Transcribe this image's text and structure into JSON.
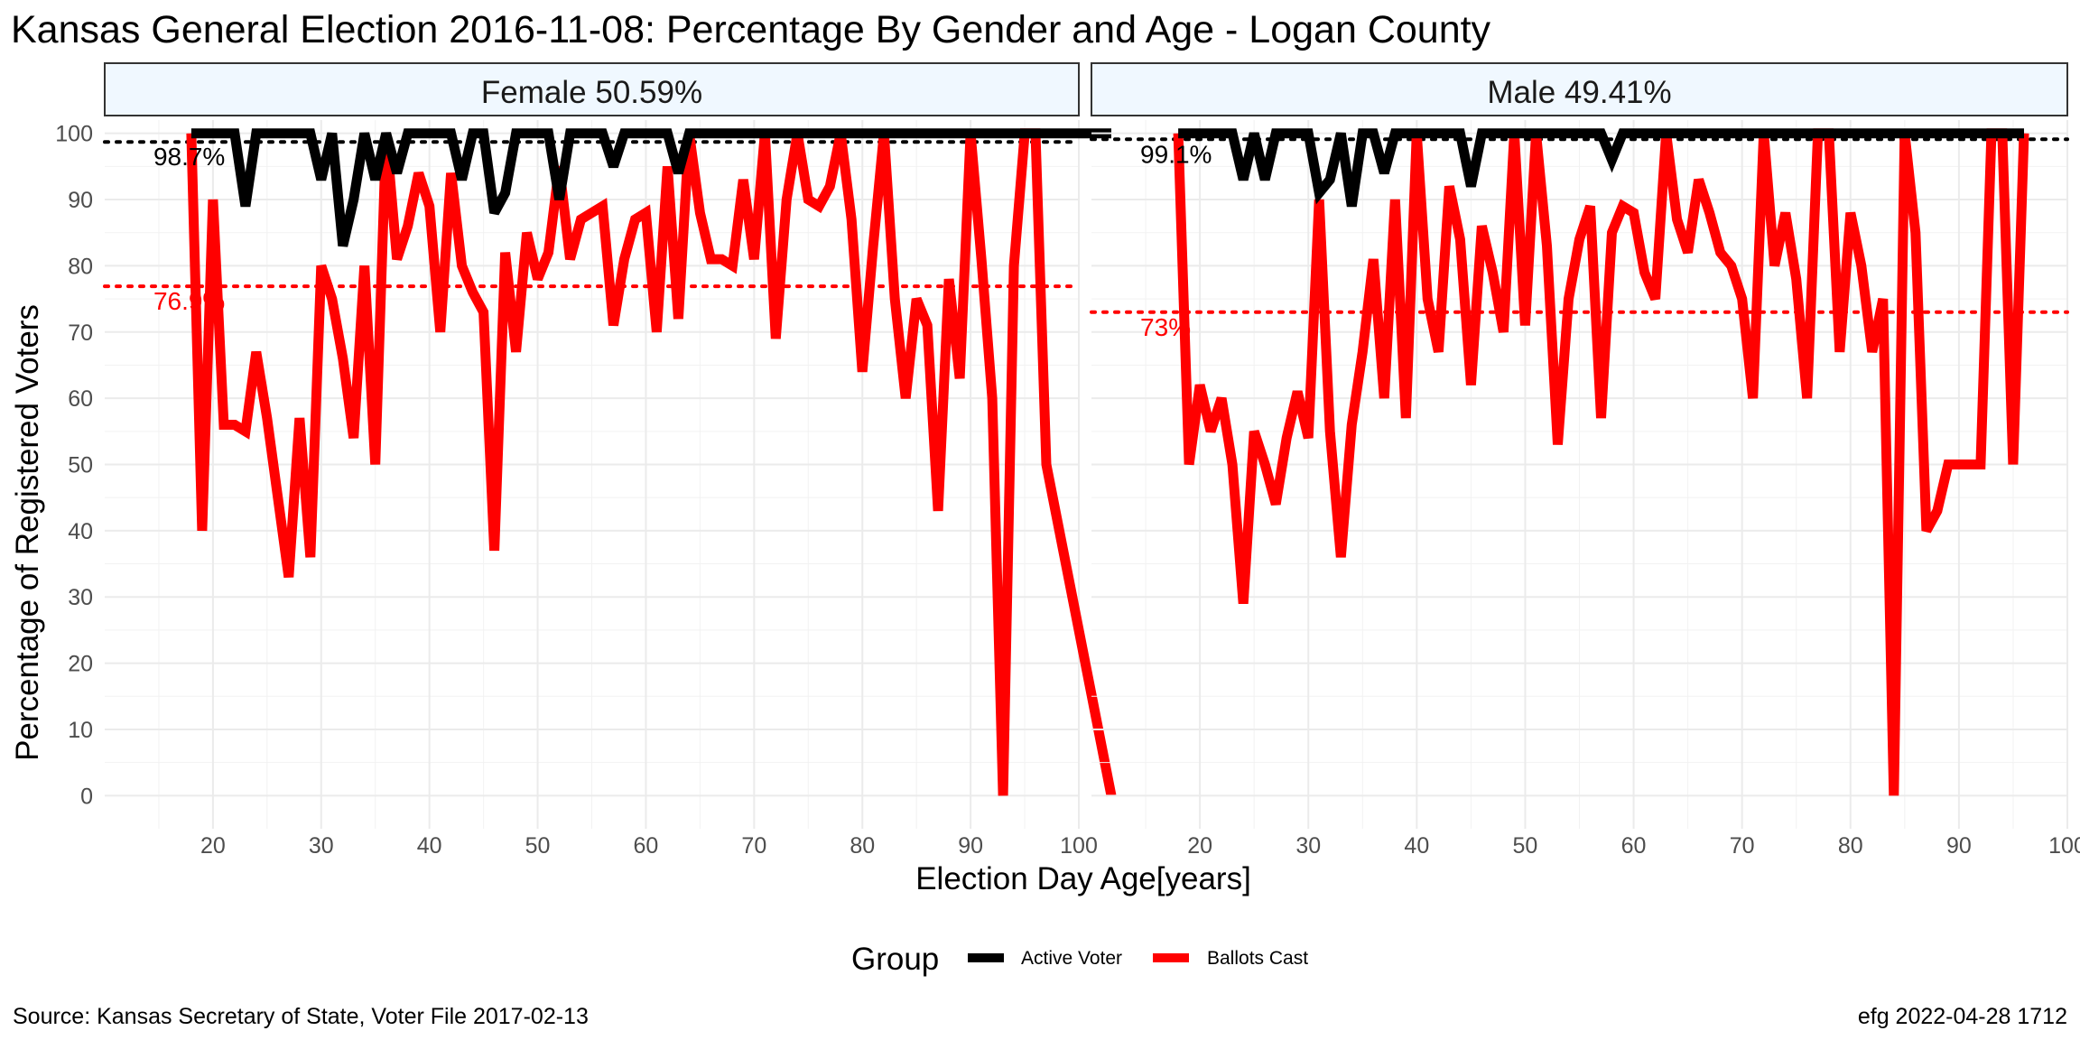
{
  "title": "Kansas General Election 2016-11-08:  Percentage By Gender and Age - Logan County",
  "caption_left": "Source:  Kansas Secretary of State, Voter File  2017-02-13",
  "caption_right": "efg 2022-04-28 1712",
  "chart_data": {
    "type": "line",
    "xlabel": "Election Day Age[years]",
    "ylabel": "Percentage of Registered Voters",
    "xlim": [
      10,
      100
    ],
    "ylim": [
      -5,
      102
    ],
    "x_ticks": [
      20,
      30,
      40,
      50,
      60,
      70,
      80,
      90,
      100
    ],
    "y_ticks": [
      0,
      10,
      20,
      30,
      40,
      50,
      60,
      70,
      80,
      90,
      100
    ],
    "grid": true,
    "legend": {
      "title": "Group",
      "placement": "bottom",
      "entries": [
        {
          "label": "Active Voter",
          "color": "#000000"
        },
        {
          "label": "Ballots Cast",
          "color": "#ff0000"
        }
      ]
    },
    "panels": [
      {
        "strip": "Female 50.59%",
        "series": [
          {
            "name": "Active Voter",
            "color": "#000000",
            "mean": 98.7,
            "mean_label": "98.7%",
            "x": [
              18,
              19,
              20,
              21,
              22,
              23,
              24,
              25,
              26,
              27,
              28,
              29,
              30,
              31,
              32,
              33,
              34,
              35,
              36,
              37,
              38,
              39,
              40,
              41,
              42,
              43,
              44,
              45,
              46,
              47,
              48,
              49,
              50,
              51,
              52,
              53,
              54,
              55,
              56,
              57,
              58,
              59,
              60,
              61,
              62,
              63,
              64,
              65,
              66,
              67,
              68,
              69,
              70,
              71,
              72,
              73,
              74,
              75,
              76,
              77,
              78,
              79,
              80,
              81,
              82,
              83,
              84,
              85,
              86,
              87,
              88,
              89,
              90,
              91,
              92,
              93,
              94,
              95,
              96,
              97,
              98,
              99,
              100,
              101,
              102,
              103
            ],
            "y": [
              100,
              100,
              100,
              100,
              100,
              89,
              100,
              100,
              100,
              100,
              100,
              100,
              93,
              100,
              83,
              90,
              100,
              93,
              100,
              94,
              100,
              100,
              100,
              100,
              100,
              93,
              100,
              100,
              88,
              91,
              100,
              100,
              100,
              100,
              90,
              100,
              100,
              100,
              100,
              95,
              100,
              100,
              100,
              100,
              100,
              94,
              100,
              100,
              100,
              100,
              100,
              100,
              100,
              100,
              100,
              100,
              100,
              100,
              100,
              100,
              100,
              100,
              100,
              100,
              100,
              100,
              100,
              100,
              100,
              100,
              100,
              100,
              100,
              100,
              100,
              100,
              100,
              100,
              100,
              100,
              100,
              100,
              100,
              100,
              100,
              100
            ]
          },
          {
            "name": "Ballots Cast",
            "color": "#ff0000",
            "mean": 76.9,
            "mean_label": "76.9%",
            "x": [
              18,
              19,
              20,
              21,
              22,
              23,
              24,
              25,
              26,
              27,
              28,
              29,
              30,
              31,
              32,
              33,
              34,
              35,
              36,
              37,
              38,
              39,
              40,
              41,
              42,
              43,
              44,
              45,
              46,
              47,
              48,
              49,
              50,
              51,
              52,
              53,
              54,
              55,
              56,
              57,
              58,
              59,
              60,
              61,
              62,
              63,
              64,
              65,
              66,
              67,
              68,
              69,
              70,
              71,
              72,
              73,
              74,
              75,
              76,
              77,
              78,
              79,
              80,
              81,
              82,
              83,
              84,
              85,
              86,
              87,
              88,
              89,
              90,
              91,
              92,
              93,
              94,
              95,
              96,
              97,
              103
            ],
            "y": [
              100,
              40,
              90,
              56,
              56,
              55,
              67,
              57,
              45,
              33,
              57,
              36,
              80,
              75,
              66,
              54,
              80,
              50,
              100,
              81,
              86,
              94,
              89,
              70,
              94,
              80,
              76,
              73,
              37,
              82,
              67,
              85,
              78,
              82,
              95,
              81,
              87,
              88,
              89,
              71,
              81,
              87,
              88,
              70,
              95,
              72,
              100,
              88,
              81,
              81,
              80,
              93,
              81,
              100,
              69,
              90,
              100,
              90,
              89,
              92,
              100,
              87,
              64,
              83,
              100,
              75,
              60,
              75,
              71,
              43,
              78,
              63,
              100,
              81,
              60,
              0,
              80,
              100,
              100,
              50,
              0
            ]
          }
        ]
      },
      {
        "strip": "Male 49.41%",
        "series": [
          {
            "name": "Active Voter",
            "color": "#000000",
            "mean": 99.1,
            "mean_label": "99.1%",
            "x": [
              18,
              19,
              20,
              21,
              22,
              23,
              24,
              25,
              26,
              27,
              28,
              29,
              30,
              31,
              32,
              33,
              34,
              35,
              36,
              37,
              38,
              39,
              40,
              41,
              42,
              43,
              44,
              45,
              46,
              47,
              48,
              49,
              50,
              51,
              52,
              53,
              54,
              55,
              56,
              57,
              58,
              59,
              60,
              61,
              62,
              63,
              64,
              65,
              66,
              67,
              68,
              69,
              70,
              71,
              72,
              73,
              74,
              75,
              76,
              77,
              78,
              79,
              80,
              81,
              82,
              83,
              84,
              85,
              86,
              87,
              88,
              89,
              90,
              91,
              92,
              93,
              94,
              95,
              96
            ],
            "y": [
              100,
              100,
              100,
              100,
              100,
              100,
              93,
              100,
              93,
              100,
              100,
              100,
              100,
              91,
              93,
              100,
              89,
              100,
              100,
              94,
              100,
              100,
              100,
              100,
              100,
              100,
              100,
              92,
              100,
              100,
              100,
              100,
              100,
              100,
              100,
              100,
              100,
              100,
              100,
              100,
              96,
              100,
              100,
              100,
              100,
              100,
              100,
              100,
              100,
              100,
              100,
              100,
              100,
              100,
              100,
              100,
              100,
              100,
              100,
              100,
              100,
              100,
              100,
              100,
              100,
              100,
              100,
              100,
              100,
              100,
              100,
              100,
              100,
              100,
              100,
              100,
              100,
              100,
              100
            ]
          },
          {
            "name": "Ballots Cast",
            "color": "#ff0000",
            "mean": 73,
            "mean_label": "73%",
            "x": [
              18,
              19,
              20,
              21,
              22,
              23,
              24,
              25,
              26,
              27,
              28,
              29,
              30,
              31,
              32,
              33,
              34,
              35,
              36,
              37,
              38,
              39,
              40,
              41,
              42,
              43,
              44,
              45,
              46,
              47,
              48,
              49,
              50,
              51,
              52,
              53,
              54,
              55,
              56,
              57,
              58,
              59,
              60,
              61,
              62,
              63,
              64,
              65,
              66,
              67,
              68,
              69,
              70,
              71,
              72,
              73,
              74,
              75,
              76,
              77,
              78,
              79,
              80,
              81,
              82,
              83,
              84,
              85,
              86,
              87,
              88,
              89,
              90,
              91,
              92,
              93,
              94,
              95,
              96
            ],
            "y": [
              100,
              50,
              62,
              55,
              60,
              50,
              29,
              55,
              50,
              44,
              54,
              61,
              54,
              90,
              55,
              36,
              56,
              67,
              81,
              60,
              90,
              57,
              100,
              75,
              67,
              92,
              84,
              62,
              86,
              79,
              70,
              100,
              71,
              100,
              83,
              53,
              75,
              84,
              89,
              57,
              85,
              89,
              88,
              79,
              75,
              100,
              87,
              82,
              93,
              88,
              82,
              80,
              75,
              60,
              100,
              80,
              88,
              78,
              60,
              100,
              100,
              67,
              88,
              80,
              67,
              75,
              0,
              100,
              85,
              40,
              43,
              50,
              50,
              50,
              50,
              100,
              100,
              50,
              100
            ]
          }
        ]
      }
    ]
  }
}
